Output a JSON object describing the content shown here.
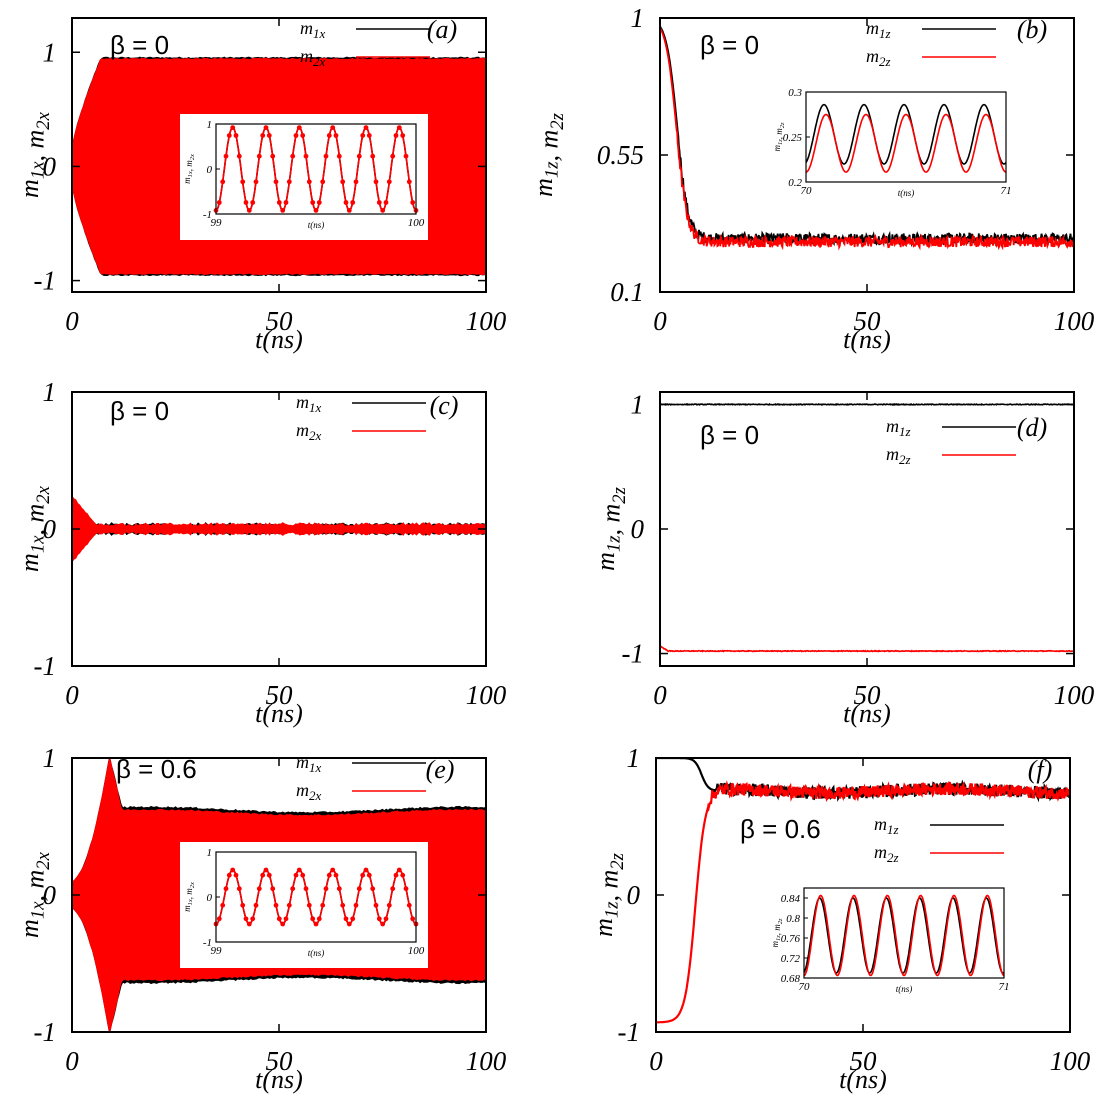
{
  "chart_data": [
    {
      "id": "a",
      "type": "line",
      "panel_label": "(a)",
      "annotation": "β = 0",
      "xlabel": "t(ns)",
      "ylabel": "m1x, m2x",
      "xlim": [
        0,
        100
      ],
      "ylim": [
        -1.1,
        1.3
      ],
      "xticks": [
        "0",
        "50",
        "100"
      ],
      "yticks": [
        "-1",
        "0",
        "1"
      ],
      "series": [
        {
          "name": "m1x",
          "color": "#000000",
          "pattern": "osc",
          "amp_start": 0.15,
          "amp_end": 0.95,
          "rise": [
            0,
            7
          ],
          "center": 0
        },
        {
          "name": "m2x",
          "color": "#ff0000",
          "pattern": "osc",
          "amp_start": 0.15,
          "amp_end": 0.94,
          "rise": [
            0,
            7
          ],
          "center": 0
        }
      ],
      "inset": {
        "xlim": [
          99,
          100
        ],
        "ylim": [
          -1,
          1
        ],
        "xticks": [
          "99",
          "100"
        ],
        "yticks": [
          "-1",
          "0",
          "1"
        ],
        "xlabel": "t(ns)",
        "ylabel": "m1x, m2x",
        "cycles": 6,
        "series": [
          {
            "name": "m1x",
            "color": "#000000",
            "center": 0,
            "amp": 0.92,
            "phase": 0,
            "style": "line"
          },
          {
            "name": "m2x",
            "color": "#ff0000",
            "center": 0,
            "amp": 0.92,
            "phase": 0,
            "style": "dots"
          }
        ]
      }
    },
    {
      "id": "b",
      "type": "line",
      "panel_label": "(b)",
      "annotation": "β = 0",
      "xlabel": "t(ns)",
      "ylabel": "m1z, m2z",
      "xlim": [
        0,
        100
      ],
      "ylim": [
        0.1,
        1.0
      ],
      "xticks": [
        "0",
        "50",
        "100"
      ],
      "yticks": [
        "0.1",
        "0.55",
        "1"
      ],
      "series": [
        {
          "name": "m1z",
          "color": "#000000",
          "pattern": "decay",
          "start": 1.0,
          "end": 0.275,
          "t_mid": 4.2,
          "width": 1.3,
          "noise": 0.018
        },
        {
          "name": "m2z",
          "color": "#ff0000",
          "pattern": "decay",
          "start": 1.0,
          "end": 0.265,
          "t_mid": 4.0,
          "width": 1.3,
          "noise": 0.018
        }
      ],
      "inset": {
        "xlim": [
          70,
          71
        ],
        "ylim": [
          0.2,
          0.3
        ],
        "xticks": [
          "70",
          "71"
        ],
        "yticks": [
          "0.2",
          "0.25",
          "0.3"
        ],
        "xlabel": "t(ns)",
        "ylabel": "m1z, m2z",
        "cycles": 5,
        "series": [
          {
            "name": "m1z",
            "color": "#000000",
            "center": 0.253,
            "amp": 0.033,
            "phase": 0.05,
            "style": "line"
          },
          {
            "name": "m2z",
            "color": "#ff0000",
            "center": 0.243,
            "amp": 0.032,
            "phase": 0,
            "style": "line"
          }
        ]
      }
    },
    {
      "id": "c",
      "type": "line",
      "panel_label": "(c)",
      "annotation": "β = 0",
      "xlabel": "t(ns)",
      "ylabel": "m1x, m2x",
      "xlim": [
        0,
        100
      ],
      "ylim": [
        -1,
        1
      ],
      "xticks": [
        "0",
        "50",
        "100"
      ],
      "yticks": [
        "-1",
        "0",
        "1"
      ],
      "series": [
        {
          "name": "m1x",
          "color": "#000000",
          "pattern": "damped",
          "amp_start": 0.22,
          "amp_end": 0.02,
          "decay": [
            0,
            6
          ],
          "center": 0
        },
        {
          "name": "m2x",
          "color": "#ff0000",
          "pattern": "damped",
          "amp_start": 0.24,
          "amp_end": 0.02,
          "decay": [
            0,
            6
          ],
          "center": 0
        }
      ]
    },
    {
      "id": "d",
      "type": "line",
      "panel_label": "(d)",
      "annotation": "β = 0",
      "xlabel": "t(ns)",
      "ylabel": "m1z, m2z",
      "xlim": [
        0,
        100
      ],
      "ylim": [
        -1.1,
        1.1
      ],
      "xticks": [
        "0",
        "50",
        "100"
      ],
      "yticks": [
        "-1",
        "0",
        "1"
      ],
      "series": [
        {
          "name": "m1z",
          "color": "#000000",
          "pattern": "flat",
          "value": 1.0
        },
        {
          "name": "m2z",
          "color": "#ff0000",
          "pattern": "flat",
          "value": -0.98,
          "start_dip": -0.94
        }
      ]
    },
    {
      "id": "e",
      "type": "line",
      "panel_label": "(e)",
      "annotation": "β = 0.6",
      "xlabel": "t(ns)",
      "ylabel": "m1x, m2x",
      "xlim": [
        0,
        100
      ],
      "ylim": [
        -1,
        1
      ],
      "xticks": [
        "0",
        "50",
        "100"
      ],
      "yticks": [
        "-1",
        "0",
        "1"
      ],
      "series": [
        {
          "name": "m1x",
          "color": "#000000",
          "pattern": "burst",
          "amp_start": 0.1,
          "amp_peak": 1.0,
          "t_peak": 9,
          "amp_end": 0.62,
          "center": 0
        },
        {
          "name": "m2x",
          "color": "#ff0000",
          "pattern": "burst",
          "amp_start": 0.1,
          "amp_peak": 1.0,
          "t_peak": 9,
          "amp_end": 0.6,
          "center": 0
        }
      ],
      "inset": {
        "xlim": [
          99,
          100
        ],
        "ylim": [
          -1,
          1
        ],
        "xticks": [
          "99",
          "100"
        ],
        "yticks": [
          "-1",
          "0",
          "1"
        ],
        "xlabel": "t(ns)",
        "ylabel": "m1x, m2x",
        "cycles": 6,
        "series": [
          {
            "name": "m1x",
            "color": "#000000",
            "center": 0,
            "amp": 0.6,
            "phase": 0,
            "style": "line"
          },
          {
            "name": "m2x",
            "color": "#ff0000",
            "center": 0,
            "amp": 0.6,
            "phase": 0,
            "style": "dots"
          }
        ]
      }
    },
    {
      "id": "f",
      "type": "line",
      "panel_label": "(f)",
      "annotation": "β = 0.6",
      "xlabel": "t(ns)",
      "ylabel": "m1z, m2z",
      "xlim": [
        0,
        100
      ],
      "ylim": [
        -1,
        1
      ],
      "xticks": [
        "0",
        "50",
        "100"
      ],
      "yticks": [
        "-1",
        "0",
        "1"
      ],
      "series": [
        {
          "name": "m1z",
          "color": "#000000",
          "pattern": "switch_down",
          "start": 1.0,
          "end": 0.76,
          "t_mid": 11
        },
        {
          "name": "m2z",
          "color": "#ff0000",
          "pattern": "switch_up",
          "start": -0.93,
          "end": 0.76,
          "t_mid": 9.5
        }
      ],
      "inset": {
        "xlim": [
          70,
          71
        ],
        "ylim": [
          0.68,
          0.86
        ],
        "xticks": [
          "70",
          "71"
        ],
        "yticks": [
          "0.68",
          "0.72",
          "0.76",
          "0.8",
          "0.84"
        ],
        "xlabel": "t(ns)",
        "ylabel": "m1z, m2z",
        "cycles": 6,
        "series": [
          {
            "name": "m1z",
            "color": "#000000",
            "center": 0.765,
            "amp": 0.075,
            "phase": 0.03,
            "style": "line"
          },
          {
            "name": "m2z",
            "color": "#ff0000",
            "center": 0.765,
            "amp": 0.08,
            "phase": 0,
            "style": "line"
          }
        ]
      }
    }
  ]
}
